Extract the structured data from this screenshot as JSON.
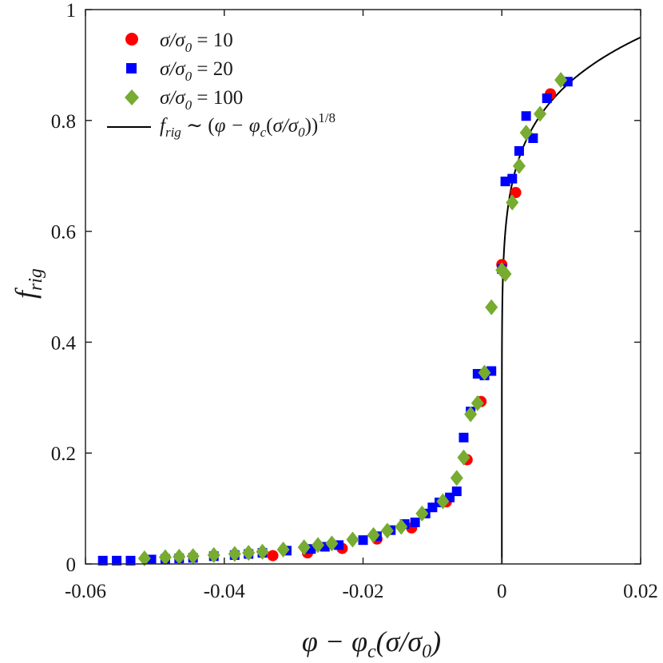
{
  "chart_data": {
    "type": "scatter",
    "title": "",
    "xlabel": "φ − φc(σ/σ0)",
    "ylabel": "frig",
    "xlim": [
      -0.06,
      0.02
    ],
    "ylim": [
      0,
      1
    ],
    "x_ticks": [
      "-0.06",
      "-0.04",
      "-0.02",
      "0",
      "0.02"
    ],
    "y_ticks": [
      "0",
      "0.2",
      "0.4",
      "0.6",
      "0.8",
      "1"
    ],
    "grid": false,
    "legend_position": "top-left",
    "series": [
      {
        "name": "σ/σ0 = 10",
        "marker": "circle",
        "color": "#ff0000",
        "points": [
          [
            -0.033,
            0.015
          ],
          [
            -0.028,
            0.02
          ],
          [
            -0.023,
            0.028
          ],
          [
            -0.018,
            0.045
          ],
          [
            -0.013,
            0.065
          ],
          [
            -0.008,
            0.112
          ],
          [
            -0.005,
            0.188
          ],
          [
            -0.003,
            0.293
          ],
          [
            0.0,
            0.54
          ],
          [
            0.002,
            0.67
          ],
          [
            0.007,
            0.848
          ]
        ]
      },
      {
        "name": "σ/σ0 = 20",
        "marker": "square",
        "color": "#0000ff",
        "points": [
          [
            -0.0575,
            0.006
          ],
          [
            -0.0555,
            0.006
          ],
          [
            -0.0535,
            0.006
          ],
          [
            -0.0505,
            0.008
          ],
          [
            -0.0485,
            0.009
          ],
          [
            -0.0465,
            0.01
          ],
          [
            -0.0445,
            0.011
          ],
          [
            -0.0415,
            0.014
          ],
          [
            -0.0385,
            0.016
          ],
          [
            -0.0365,
            0.018
          ],
          [
            -0.0345,
            0.02
          ],
          [
            -0.031,
            0.024
          ],
          [
            -0.0275,
            0.027
          ],
          [
            -0.0255,
            0.031
          ],
          [
            -0.0235,
            0.034
          ],
          [
            -0.02,
            0.043
          ],
          [
            -0.018,
            0.05
          ],
          [
            -0.016,
            0.061
          ],
          [
            -0.014,
            0.072
          ],
          [
            -0.0125,
            0.075
          ],
          [
            -0.011,
            0.091
          ],
          [
            -0.01,
            0.102
          ],
          [
            -0.009,
            0.111
          ],
          [
            -0.0075,
            0.12
          ],
          [
            -0.0065,
            0.131
          ],
          [
            -0.0055,
            0.228
          ],
          [
            -0.0045,
            0.275
          ],
          [
            -0.0035,
            0.343
          ],
          [
            -0.0025,
            0.34
          ],
          [
            -0.0015,
            0.348
          ],
          [
            0.0,
            0.532
          ],
          [
            0.0005,
            0.69
          ],
          [
            0.0015,
            0.695
          ],
          [
            0.0025,
            0.745
          ],
          [
            0.0035,
            0.808
          ],
          [
            0.0045,
            0.768
          ],
          [
            0.0065,
            0.84
          ],
          [
            0.0095,
            0.87
          ]
        ]
      },
      {
        "name": "σ/σ0 = 100",
        "marker": "diamond",
        "color": "#77ac30",
        "points": [
          [
            -0.0515,
            0.01
          ],
          [
            -0.0485,
            0.012
          ],
          [
            -0.0465,
            0.013
          ],
          [
            -0.0445,
            0.014
          ],
          [
            -0.0415,
            0.016
          ],
          [
            -0.0385,
            0.018
          ],
          [
            -0.0365,
            0.02
          ],
          [
            -0.0345,
            0.022
          ],
          [
            -0.0315,
            0.026
          ],
          [
            -0.0285,
            0.03
          ],
          [
            -0.0265,
            0.034
          ],
          [
            -0.0245,
            0.037
          ],
          [
            -0.0215,
            0.044
          ],
          [
            -0.0185,
            0.052
          ],
          [
            -0.0165,
            0.06
          ],
          [
            -0.0145,
            0.067
          ],
          [
            -0.0115,
            0.091
          ],
          [
            -0.0085,
            0.113
          ],
          [
            -0.0065,
            0.155
          ],
          [
            -0.0055,
            0.192
          ],
          [
            -0.0045,
            0.27
          ],
          [
            -0.0035,
            0.29
          ],
          [
            -0.0025,
            0.345
          ],
          [
            -0.0015,
            0.463
          ],
          [
            0.0,
            0.53
          ],
          [
            0.0005,
            0.523
          ],
          [
            0.0015,
            0.652
          ],
          [
            0.0025,
            0.718
          ],
          [
            0.0035,
            0.778
          ],
          [
            0.0055,
            0.812
          ],
          [
            0.0085,
            0.873
          ]
        ]
      },
      {
        "name": "frig ∼ (φ − φc(σ/σ0))^(1/8)",
        "type": "line",
        "color": "#000000",
        "formula": "frig = (x / 0.02)^(1/8) * 0.95",
        "exponent": 0.125,
        "prefactor": 1.54
      }
    ]
  }
}
